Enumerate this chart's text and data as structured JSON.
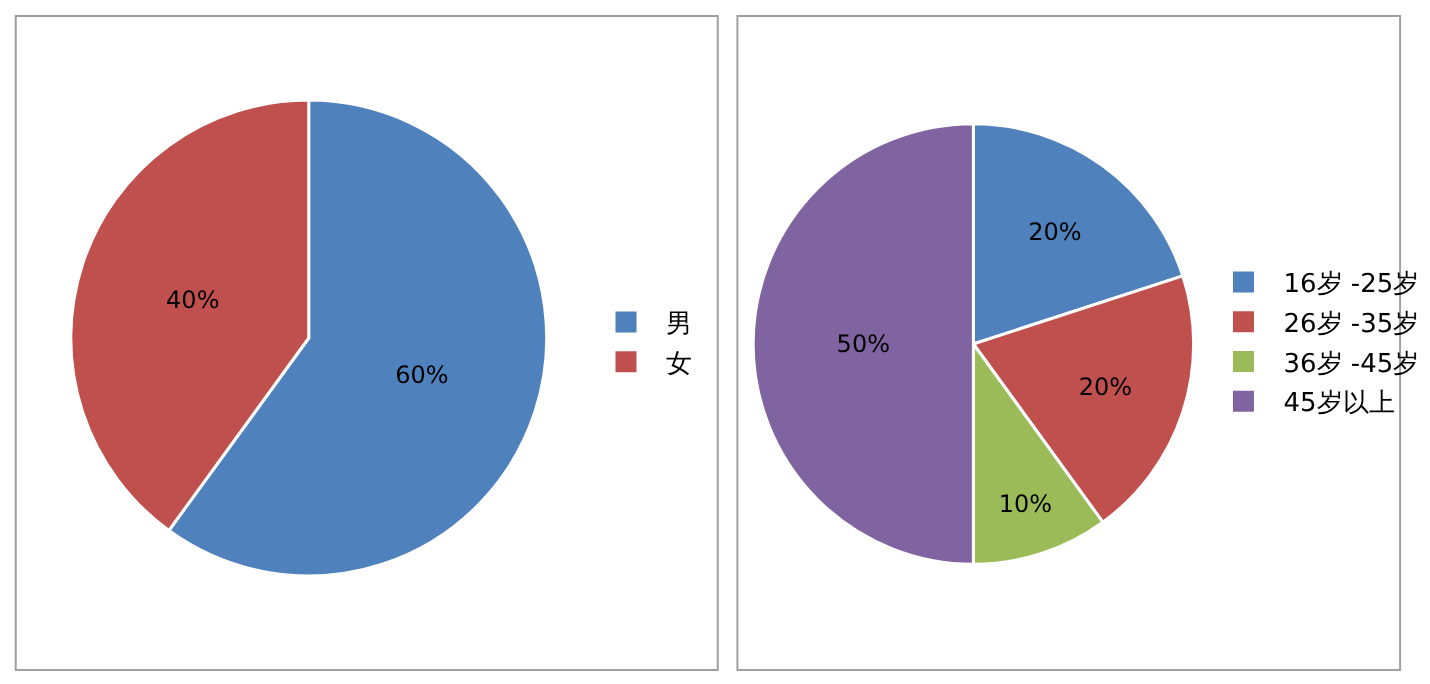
{
  "chart_data": [
    {
      "type": "pie",
      "categories": [
        "男",
        "女"
      ],
      "values": [
        60,
        40
      ],
      "colors": [
        "#4f81bd",
        "#c0504d"
      ],
      "value_labels": [
        "60%",
        "40%"
      ],
      "legend": "right"
    },
    {
      "type": "pie",
      "categories": [
        "16岁 -25岁",
        "26岁 -35岁",
        "36岁 -45岁",
        "45岁以上"
      ],
      "values": [
        20,
        20,
        10,
        50
      ],
      "colors": [
        "#4f81bd",
        "#c0504d",
        "#9bbb59",
        "#8064a2"
      ],
      "value_labels": [
        "20%",
        "20%",
        "10%",
        "50%"
      ],
      "legend": "right"
    }
  ]
}
